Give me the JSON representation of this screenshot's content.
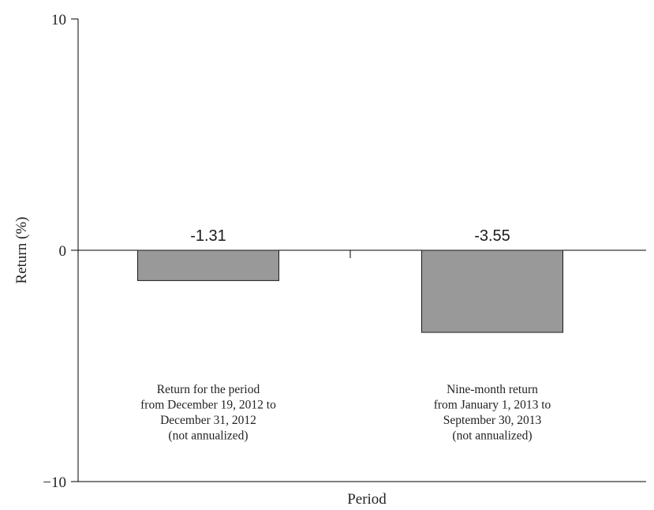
{
  "chart_data": {
    "type": "bar",
    "title": "",
    "xlabel": "Period",
    "ylabel": "Return (%)",
    "ylim": [
      -10,
      10
    ],
    "yticks": [
      "10",
      "0",
      "−10"
    ],
    "yticks_values": [
      10,
      0,
      -10
    ],
    "categories": [
      {
        "lines": [
          "Return for the period",
          "from December 19, 2012 to",
          "December 31, 2012",
          "(not annualized)"
        ]
      },
      {
        "lines": [
          "Nine-month return",
          "from January 1, 2013 to",
          "September 30, 2013",
          "(not annualized)"
        ]
      }
    ],
    "values": [
      -1.31,
      -3.55
    ],
    "value_labels": [
      "-1.31",
      "-3.55"
    ],
    "bar_color": "#999999",
    "grid": false,
    "legend": "none"
  }
}
